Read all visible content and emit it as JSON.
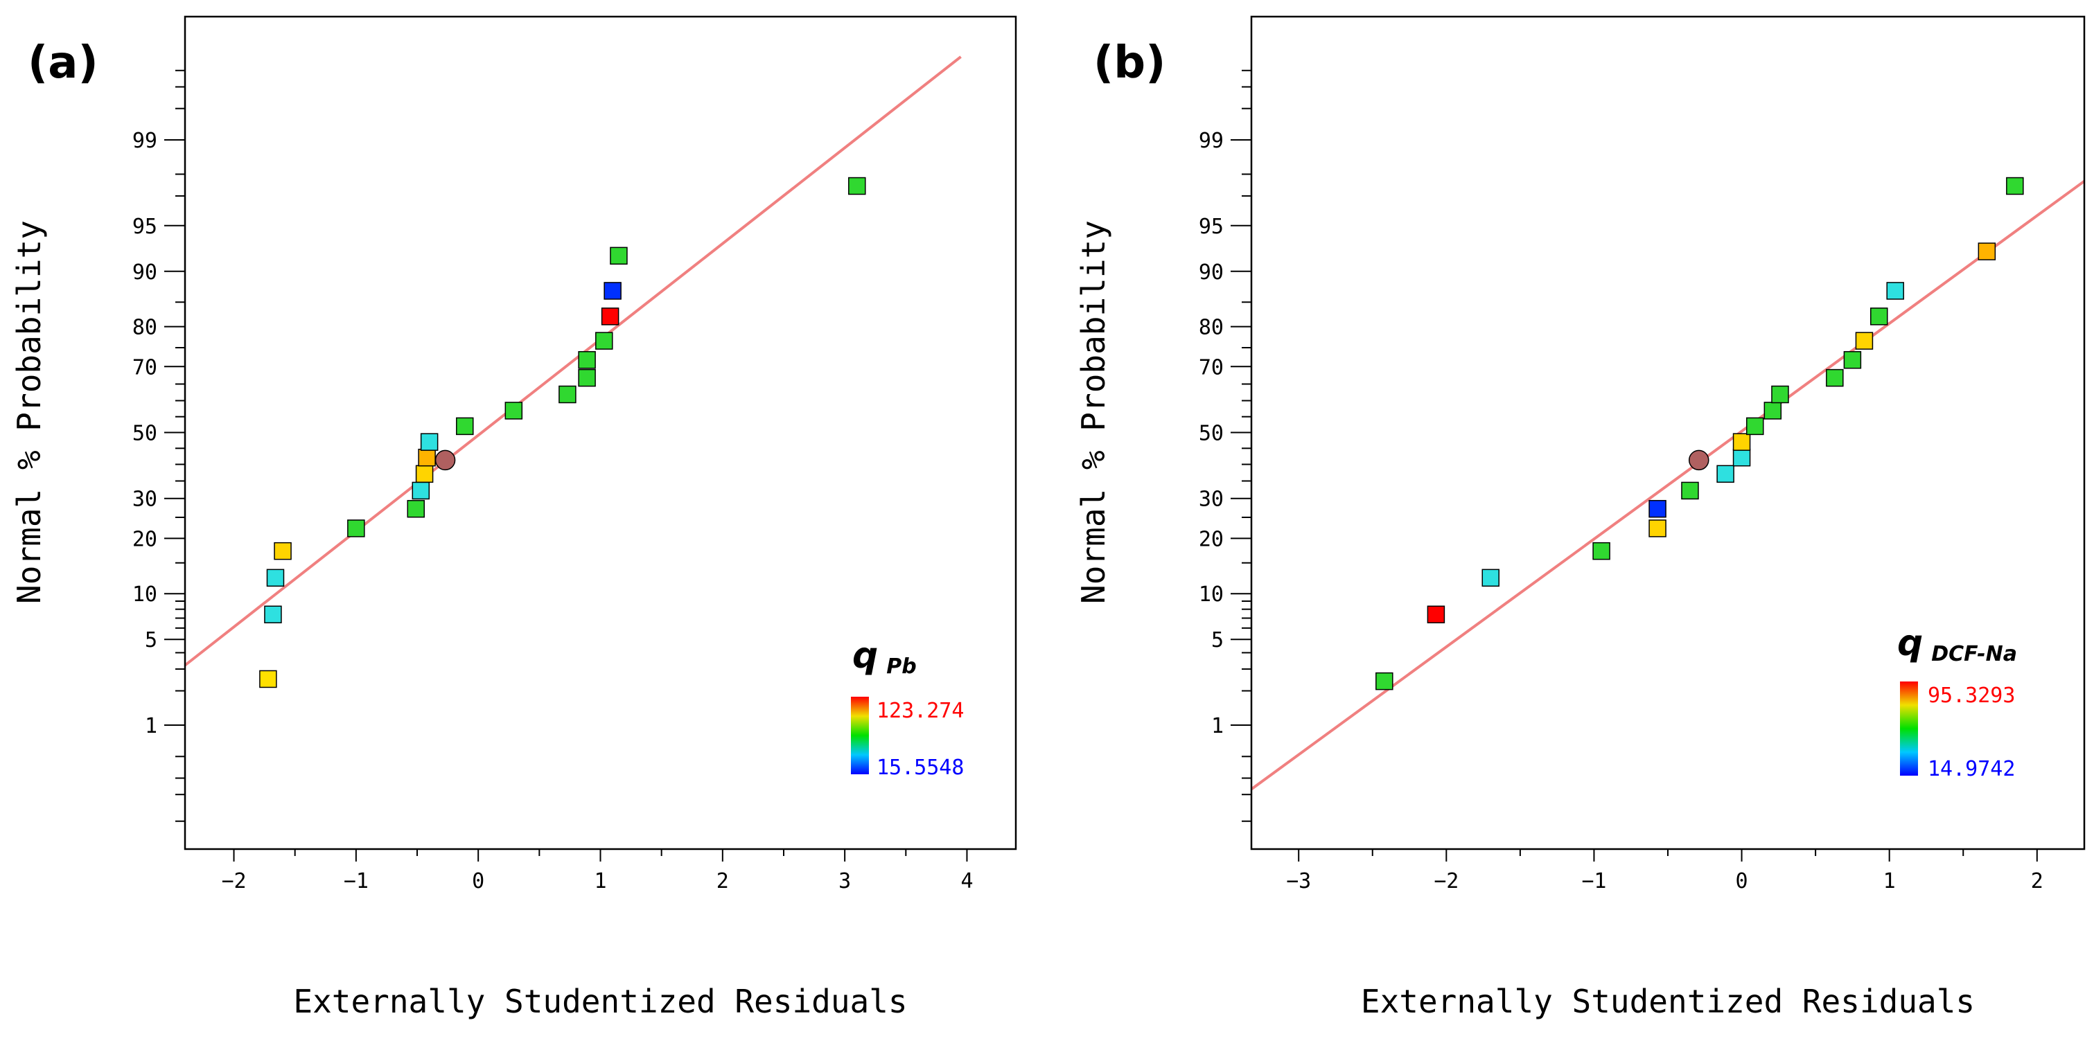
{
  "chart_data": [
    {
      "type": "scatter",
      "panel_label": "(a)",
      "xlabel": "Externally Studentized Residuals",
      "ylabel": "Normal % Probability",
      "xlim": [
        -2.4,
        4.4
      ],
      "x_ticks": [
        "-2",
        "-1",
        "0",
        "1",
        "2",
        "3",
        "4"
      ],
      "y_ticks": [
        "1",
        "5",
        "10",
        "20",
        "30",
        "50",
        "70",
        "80",
        "90",
        "95",
        "99"
      ],
      "legend": {
        "symbol": "q",
        "subscript": "Pb",
        "subscript_suffix": "",
        "max_label": "123.274",
        "min_label": "15.5548",
        "max_color": "#ff0000",
        "min_color": "#0000ff"
      },
      "fit_line": {
        "x1": -2.4,
        "x2": 3.95,
        "color": "#f08080"
      },
      "points": [
        {
          "x": -1.72,
          "p": 2.5,
          "color": "#ffe000",
          "shape": "square"
        },
        {
          "x": -1.68,
          "p": 7.4,
          "color": "#2ee0e0",
          "shape": "square"
        },
        {
          "x": -1.66,
          "p": 12.4,
          "color": "#2ee0e0",
          "shape": "square"
        },
        {
          "x": -1.6,
          "p": 17.3,
          "color": "#ffd400",
          "shape": "square"
        },
        {
          "x": -1.0,
          "p": 22.3,
          "color": "#30d830",
          "shape": "square"
        },
        {
          "x": -0.51,
          "p": 27.2,
          "color": "#30d830",
          "shape": "square"
        },
        {
          "x": -0.47,
          "p": 32.2,
          "color": "#2ee0e0",
          "shape": "square"
        },
        {
          "x": -0.44,
          "p": 37.1,
          "color": "#ffd400",
          "shape": "square"
        },
        {
          "x": -0.42,
          "p": 42.1,
          "color": "#ffb300",
          "shape": "square"
        },
        {
          "x": -0.27,
          "p": 41.3,
          "color": "#b06060",
          "shape": "circle"
        },
        {
          "x": -0.4,
          "p": 47.0,
          "color": "#2ee0e0",
          "shape": "square"
        },
        {
          "x": -0.11,
          "p": 52.0,
          "color": "#30d830",
          "shape": "square"
        },
        {
          "x": 0.29,
          "p": 56.9,
          "color": "#30d830",
          "shape": "square"
        },
        {
          "x": 0.73,
          "p": 61.9,
          "color": "#30d830",
          "shape": "square"
        },
        {
          "x": 0.89,
          "p": 66.8,
          "color": "#30d830",
          "shape": "square"
        },
        {
          "x": 0.89,
          "p": 71.8,
          "color": "#30d830",
          "shape": "square"
        },
        {
          "x": 1.03,
          "p": 76.7,
          "color": "#30d830",
          "shape": "square"
        },
        {
          "x": 1.08,
          "p": 82.2,
          "color": "#ff0000",
          "shape": "square"
        },
        {
          "x": 1.1,
          "p": 87.0,
          "color": "#0030ff",
          "shape": "square"
        },
        {
          "x": 1.15,
          "p": 92.0,
          "color": "#30d830",
          "shape": "square"
        },
        {
          "x": 3.1,
          "p": 97.5,
          "color": "#30d830",
          "shape": "square"
        }
      ]
    },
    {
      "type": "scatter",
      "panel_label": "(b)",
      "xlabel": "Externally Studentized Residuals",
      "ylabel": "Normal % Probability",
      "xlim": [
        -3.32,
        2.32
      ],
      "x_ticks": [
        "-3",
        "-2",
        "-1",
        "0",
        "1",
        "2"
      ],
      "y_ticks": [
        "1",
        "5",
        "10",
        "20",
        "30",
        "50",
        "70",
        "80",
        "90",
        "95",
        "99"
      ],
      "legend": {
        "symbol": "q",
        "subscript": "DCF",
        "subscript_suffix": "-Na",
        "max_label": "95.3293",
        "min_label": "14.9742",
        "max_color": "#ff0000",
        "min_color": "#0000ff"
      },
      "fit_line": {
        "x1": -3.32,
        "x2": 2.32,
        "color": "#f08080"
      },
      "points": [
        {
          "x": -2.42,
          "p": 2.4,
          "color": "#30d830",
          "shape": "square"
        },
        {
          "x": -2.07,
          "p": 7.4,
          "color": "#ff0000",
          "shape": "square"
        },
        {
          "x": -1.7,
          "p": 12.4,
          "color": "#2ee0e0",
          "shape": "square"
        },
        {
          "x": -0.95,
          "p": 17.3,
          "color": "#30d830",
          "shape": "square"
        },
        {
          "x": -0.57,
          "p": 22.3,
          "color": "#ffd400",
          "shape": "square"
        },
        {
          "x": -0.57,
          "p": 27.2,
          "color": "#0030ff",
          "shape": "square"
        },
        {
          "x": -0.35,
          "p": 32.2,
          "color": "#30d830",
          "shape": "square"
        },
        {
          "x": -0.29,
          "p": 41.3,
          "color": "#b06060",
          "shape": "circle"
        },
        {
          "x": -0.11,
          "p": 37.1,
          "color": "#2ee0e0",
          "shape": "square"
        },
        {
          "x": 0.0,
          "p": 42.1,
          "color": "#2ee0e0",
          "shape": "square"
        },
        {
          "x": 0.0,
          "p": 47.0,
          "color": "#ffd400",
          "shape": "square"
        },
        {
          "x": 0.09,
          "p": 52.0,
          "color": "#30d830",
          "shape": "square"
        },
        {
          "x": 0.21,
          "p": 56.9,
          "color": "#30d830",
          "shape": "square"
        },
        {
          "x": 0.26,
          "p": 61.9,
          "color": "#30d830",
          "shape": "square"
        },
        {
          "x": 0.63,
          "p": 66.8,
          "color": "#30d830",
          "shape": "square"
        },
        {
          "x": 0.75,
          "p": 71.8,
          "color": "#30d830",
          "shape": "square"
        },
        {
          "x": 0.83,
          "p": 76.7,
          "color": "#ffd400",
          "shape": "square"
        },
        {
          "x": 0.93,
          "p": 82.2,
          "color": "#30d830",
          "shape": "square"
        },
        {
          "x": 1.04,
          "p": 87.0,
          "color": "#2ee0e0",
          "shape": "square"
        },
        {
          "x": 1.66,
          "p": 92.5,
          "color": "#ffb300",
          "shape": "square"
        },
        {
          "x": 1.85,
          "p": 97.5,
          "color": "#30d830",
          "shape": "square"
        }
      ]
    }
  ]
}
